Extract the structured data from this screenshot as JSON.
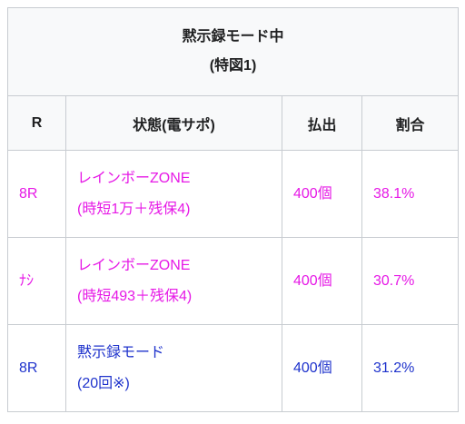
{
  "header": {
    "title": "黙示録モード中",
    "subtitle": "(特図1)"
  },
  "table": {
    "columns": [
      "R",
      "状態(電サポ)",
      "払出",
      "割合"
    ],
    "rows": [
      {
        "cells": [
          "8R",
          [
            "レインボーZONE",
            "(時短1万＋残保4)"
          ],
          "400個",
          "38.1%"
        ],
        "color": "#e619e6"
      },
      {
        "cells": [
          "ﾅｼ",
          [
            "レインボーZONE",
            "(時短493＋残保4)"
          ],
          "400個",
          "30.7%"
        ],
        "color": "#e619e6"
      },
      {
        "cells": [
          "8R",
          [
            "黙示録モード",
            "(20回※)"
          ],
          "400個",
          "31.2%"
        ],
        "color": "#1f33cc"
      }
    ]
  }
}
